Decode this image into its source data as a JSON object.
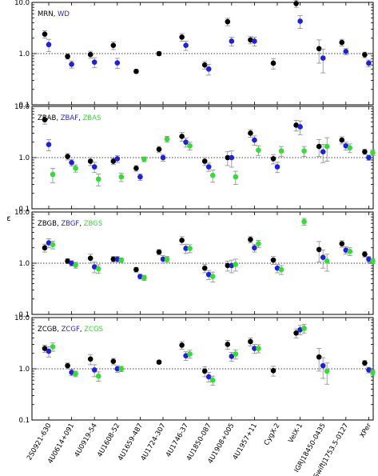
{
  "chart_data": {
    "type": "scatter",
    "ylabel": "ε",
    "yscale": "log",
    "ylim": [
      0.1,
      10
    ],
    "y_ticks": [
      "0.1",
      "1.0",
      "10.0"
    ],
    "reference_line": 1.0,
    "categories": [
      "2S0921-630",
      "4U0614+091",
      "4U0919-54",
      "4U1608-52",
      "4U1659-487",
      "4U1724-307",
      "4U1746-37",
      "4U1850-087",
      "4U1908+005",
      "4U1957+11",
      "CygX-2",
      "VelX-1",
      "IGRJ18450-0435",
      "SwiftJ1753.5-0127",
      "XPer"
    ],
    "colors": {
      "black": "#000000",
      "blue": "#1f1fe0",
      "green": "#33dd33",
      "error": "#8a8a8a"
    },
    "panels": [
      {
        "series": [
          {
            "name": "MRN",
            "color": "black",
            "values": [
              2.4,
              0.88,
              0.96,
              1.45,
              0.45,
              1.0,
              2.1,
              0.6,
              4.2,
              1.85,
              0.65,
              9.5,
              1.25,
              1.65,
              0.95
            ],
            "err": [
              0.4,
              0.1,
              0.15,
              0.25,
              0.04,
              0.08,
              0.35,
              0.1,
              0.7,
              0.3,
              0.15,
              1.5,
              0.6,
              0.25,
              0.12
            ]
          },
          {
            "name": "WD",
            "color": "blue",
            "values": [
              1.5,
              0.62,
              0.68,
              0.66,
              null,
              null,
              1.45,
              0.5,
              1.75,
              1.75,
              null,
              4.3,
              0.82,
              1.1,
              0.65
            ],
            "err": [
              0.4,
              0.1,
              0.15,
              0.15,
              null,
              null,
              0.3,
              0.12,
              0.35,
              0.35,
              null,
              1.2,
              0.4,
              0.15,
              0.1
            ]
          }
        ]
      },
      {
        "series": [
          {
            "name": "ZBAB",
            "color": "black",
            "values": [
              5.5,
              1.05,
              0.85,
              0.85,
              0.62,
              1.45,
              2.6,
              0.85,
              1.0,
              3.0,
              0.95,
              4.3,
              1.65,
              2.2,
              1.3
            ],
            "err": [
              1.0,
              0.15,
              0.15,
              0.12,
              0.08,
              0.2,
              0.5,
              0.15,
              0.3,
              0.5,
              0.2,
              1.0,
              0.6,
              0.35,
              0.15
            ]
          },
          {
            "name": "ZBAF",
            "color": "blue",
            "values": [
              1.8,
              0.8,
              0.66,
              0.95,
              0.42,
              1.0,
              2.0,
              0.66,
              1.0,
              2.2,
              0.66,
              4.0,
              1.3,
              1.7,
              1.0
            ],
            "err": [
              0.45,
              0.12,
              0.15,
              0.15,
              0.06,
              0.15,
              0.4,
              0.12,
              0.35,
              0.45,
              0.15,
              1.2,
              0.5,
              0.3,
              0.12
            ]
          },
          {
            "name": "ZBAS",
            "color": "green",
            "values": [
              0.47,
              0.62,
              0.38,
              0.42,
              0.93,
              2.3,
              1.7,
              0.45,
              0.42,
              1.4,
              1.35,
              1.35,
              1.65,
              1.55,
              1.25
            ],
            "err": [
              0.15,
              0.1,
              0.1,
              0.08,
              0.1,
              0.3,
              0.3,
              0.12,
              0.12,
              0.3,
              0.3,
              0.3,
              0.8,
              0.3,
              0.15
            ]
          }
        ]
      },
      {
        "series": [
          {
            "name": "ZBGB",
            "color": "black",
            "values": [
              2.0,
              1.1,
              1.25,
              1.2,
              0.75,
              1.65,
              2.8,
              0.8,
              0.9,
              2.9,
              1.15,
              null,
              1.85,
              2.4,
              1.5
            ],
            "err": [
              0.35,
              0.12,
              0.25,
              0.15,
              0.08,
              0.2,
              0.5,
              0.15,
              0.2,
              0.4,
              0.2,
              null,
              0.8,
              0.35,
              0.2
            ]
          },
          {
            "name": "ZBGF",
            "color": "blue",
            "values": [
              2.5,
              1.0,
              0.85,
              1.2,
              0.55,
              1.2,
              1.95,
              0.6,
              0.9,
              2.0,
              0.8,
              null,
              1.3,
              1.8,
              1.2
            ],
            "err": [
              0.5,
              0.12,
              0.2,
              0.15,
              0.06,
              0.2,
              0.4,
              0.12,
              0.25,
              0.35,
              0.15,
              null,
              0.5,
              0.3,
              0.15
            ]
          },
          {
            "name": "ZBGS",
            "color": "green",
            "values": [
              2.3,
              0.92,
              0.78,
              1.15,
              0.52,
              1.2,
              1.95,
              0.55,
              0.95,
              2.4,
              0.75,
              6.5,
              1.1,
              1.7,
              1.1
            ],
            "err": [
              0.4,
              0.12,
              0.15,
              0.12,
              0.06,
              0.15,
              0.35,
              0.12,
              0.25,
              0.4,
              0.15,
              1.0,
              0.4,
              0.3,
              0.12
            ]
          }
        ]
      },
      {
        "series": [
          {
            "name": "ZCGB",
            "color": "black",
            "values": [
              2.5,
              1.15,
              1.55,
              1.4,
              null,
              1.35,
              2.9,
              0.9,
              3.0,
              3.4,
              0.92,
              5.0,
              1.7,
              null,
              1.3
            ],
            "err": [
              0.4,
              0.15,
              0.35,
              0.2,
              null,
              0.1,
              0.5,
              0.2,
              0.6,
              0.6,
              0.2,
              1.0,
              0.8,
              null,
              0.15
            ]
          },
          {
            "name": "ZCGF",
            "color": "blue",
            "values": [
              2.2,
              0.85,
              0.95,
              1.0,
              null,
              null,
              1.8,
              0.7,
              1.75,
              2.5,
              null,
              5.8,
              1.15,
              null,
              0.95
            ],
            "err": [
              0.5,
              0.12,
              0.25,
              0.15,
              null,
              null,
              0.35,
              0.15,
              0.35,
              0.5,
              null,
              1.2,
              0.5,
              null,
              0.12
            ]
          },
          {
            "name": "ZCGS",
            "color": "green",
            "values": [
              2.7,
              0.8,
              0.72,
              1.0,
              null,
              null,
              1.95,
              0.6,
              1.95,
              2.5,
              null,
              6.2,
              0.9,
              null,
              0.85
            ],
            "err": [
              0.5,
              0.1,
              0.15,
              0.12,
              null,
              null,
              0.35,
              0.12,
              0.4,
              0.45,
              null,
              1.2,
              0.4,
              null,
              0.1
            ]
          }
        ]
      }
    ]
  }
}
